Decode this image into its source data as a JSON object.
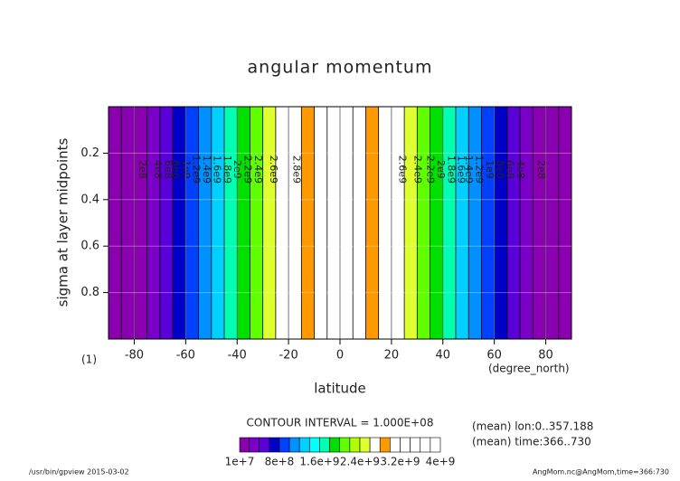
{
  "chart_data": {
    "type": "contour",
    "title": "angular momentum",
    "ylabel": "sigma at layer midpoints",
    "xlabel": "latitude",
    "xunit": "(degree_north)",
    "yunit": "(1)",
    "contour_interval": "CONTOUR INTERVAL = 1.000E+08",
    "notes": [
      "(mean) lon:0..357.188",
      "(mean) time:366..730"
    ],
    "footer_left": "/usr/bin/gpview  2015-03-02",
    "footer_right": "AngMom.nc@AngMom,time=366:730",
    "xlim": [
      -90,
      90
    ],
    "ylim": [
      1,
      0
    ],
    "xticks": [
      -80,
      -60,
      -40,
      -20,
      0,
      20,
      40,
      60,
      80
    ],
    "yticks": [
      0.2,
      0.4,
      0.6,
      0.8
    ],
    "grid": true,
    "x": [
      -87.5,
      -82.5,
      -77.5,
      -72.5,
      -67.5,
      -62.5,
      -57.5,
      -52.5,
      -47.5,
      -42.5,
      -37.5,
      -32.5,
      -27.5,
      -22.5,
      -17.5,
      -12.5,
      -7.5,
      -2.5,
      2.5,
      7.5,
      12.5,
      17.5,
      22.5,
      27.5,
      32.5,
      37.5,
      42.5,
      47.5,
      52.5,
      57.5,
      62.5,
      67.5,
      72.5,
      77.5,
      82.5,
      87.5
    ],
    "values": [
      5600000,
      50400000,
      139000000,
      268000000,
      434000000,
      631000000,
      855000000,
      1097000000,
      1351000000,
      1609000000,
      1863000000,
      2106000000,
      2450000000,
      2650000000,
      2750000000,
      2900000000,
      3050000000,
      3100000000,
      3100000000,
      3050000000,
      2900000000,
      2750000000,
      2650000000,
      2450000000,
      2106000000,
      1863000000,
      1609000000,
      1351000000,
      1097000000,
      855000000,
      631000000,
      434000000,
      268000000,
      139000000,
      50400000,
      5600000
    ],
    "contour_labels": [
      {
        "text": "2e8",
        "x": -77
      },
      {
        "text": "4e8",
        "x": -71
      },
      {
        "text": "6e8",
        "x": -67
      },
      {
        "text": "8e8",
        "x": -64
      },
      {
        "text": "1e9",
        "x": -60
      },
      {
        "text": "1.2e9",
        "x": -56
      },
      {
        "text": "1.4e9",
        "x": -52
      },
      {
        "text": "1.6e9",
        "x": -48
      },
      {
        "text": "1.8e9",
        "x": -44
      },
      {
        "text": "2e9",
        "x": -40
      },
      {
        "text": "2.2e9",
        "x": -36
      },
      {
        "text": "2.4e9",
        "x": -32
      },
      {
        "text": "2.6e9",
        "x": -26
      },
      {
        "text": "2.8e9",
        "x": -17
      },
      {
        "text": "2.6e9",
        "x": 24
      },
      {
        "text": "2.4e9",
        "x": 30
      },
      {
        "text": "2.2e9",
        "x": 35
      },
      {
        "text": "2e9",
        "x": 39
      },
      {
        "text": "1.8e9",
        "x": 43
      },
      {
        "text": "1.6e9",
        "x": 47
      },
      {
        "text": "1.4e9",
        "x": 50
      },
      {
        "text": "1.2e9",
        "x": 54
      },
      {
        "text": "1e9",
        "x": 58
      },
      {
        "text": "8e8",
        "x": 62
      },
      {
        "text": "6e8",
        "x": 66
      },
      {
        "text": "4e8",
        "x": 70
      },
      {
        "text": "2e8",
        "x": 78
      }
    ],
    "colorbar": {
      "levels": [
        10000000,
        200000000,
        400000000,
        600000000,
        800000000,
        1000000000,
        1200000000,
        1400000000,
        1600000000,
        1800000000,
        2000000000,
        2200000000,
        2400000000,
        2600000000,
        2800000000,
        3000000000,
        3200000000,
        3400000000,
        3600000000,
        3800000000,
        4000000000
      ],
      "colors": [
        "#8a00b0",
        "#7a00c8",
        "#5a00d8",
        "#0000c8",
        "#0040ff",
        "#0090ff",
        "#00d0ff",
        "#00ffff",
        "#00ffb0",
        "#00e000",
        "#60ff00",
        "#b0ff00",
        "#e0ff30",
        "#ffffff",
        "#ff9900",
        "#ffffff",
        "#ffffff",
        "#ffffff",
        "#ffffff",
        "#ffffff"
      ],
      "ticks": [
        {
          "value": 10000000,
          "label": "1e+7"
        },
        {
          "value": 800000000,
          "label": "8e+8"
        },
        {
          "value": 1600000000,
          "label": "1.6e+9"
        },
        {
          "value": 2400000000,
          "label": "2.4e+9"
        },
        {
          "value": 3200000000,
          "label": "3.2e+9"
        },
        {
          "value": 4000000000,
          "label": "4e+9"
        }
      ]
    }
  }
}
